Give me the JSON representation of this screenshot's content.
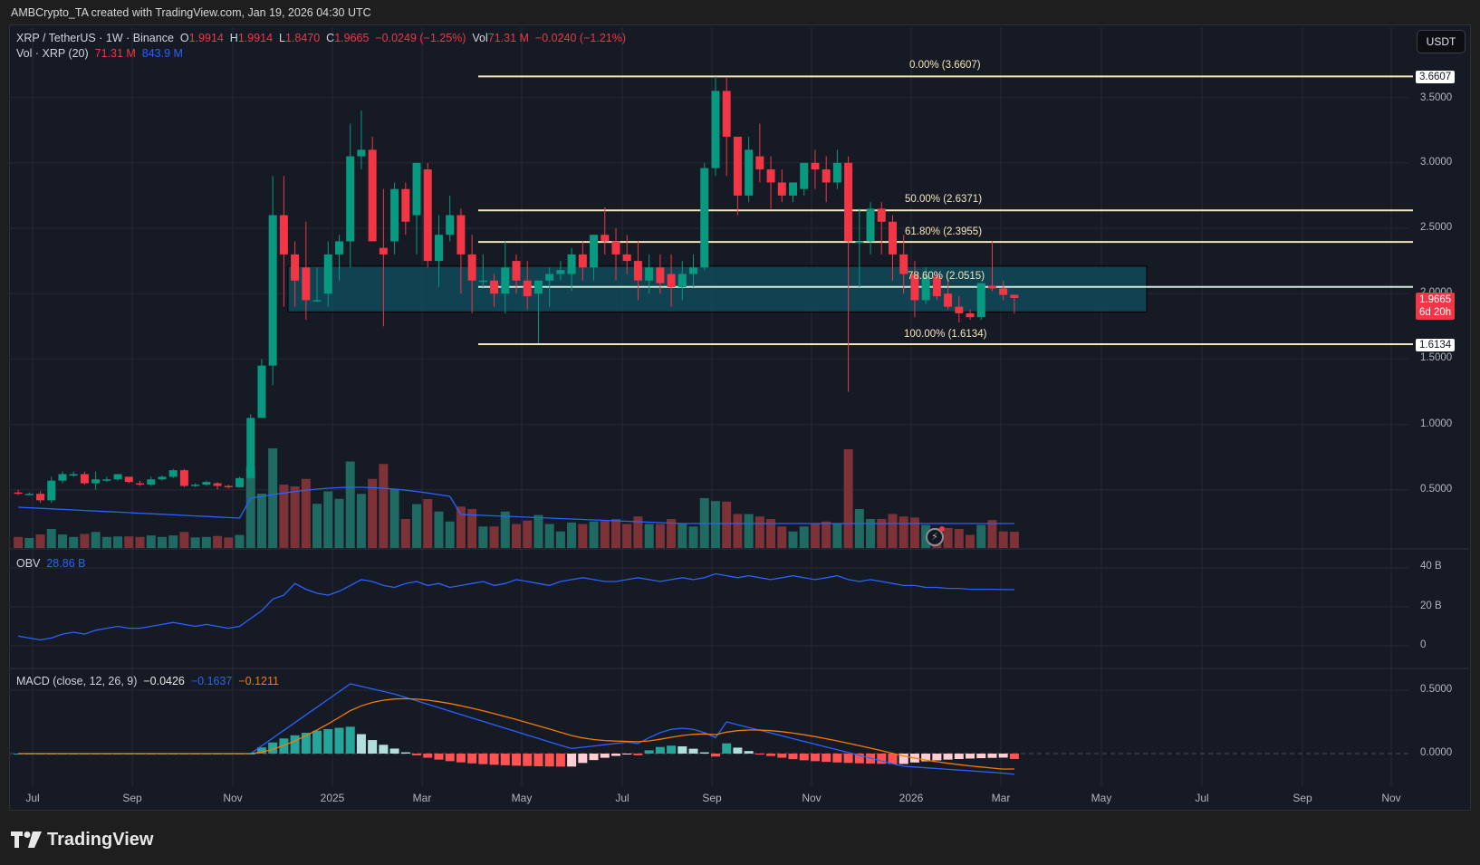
{
  "header": {
    "caption": "AMBCrypto_TA created with TradingView.com, Jan 19, 2026 04:30 UTC"
  },
  "symbol_legend": {
    "symbol": "XRP / TetherUS · 1W · Binance",
    "open_label": "O",
    "open": "1.9914",
    "high_label": "H",
    "high": "1.9914",
    "low_label": "L",
    "low": "1.8470",
    "close_label": "C",
    "close": "1.9665",
    "change": "−0.0249 (−1.25%)",
    "vol_label": "Vol",
    "vol": "71.31 M",
    "vol_change": "−0.0240 (−1.21%)"
  },
  "volume_legend": {
    "label": "Vol · XRP (20)",
    "value": "71.31 M",
    "ma": "843.9 M"
  },
  "currency_button": "USDT",
  "price_axis": {
    "ticks": [
      "3.5000",
      "3.0000",
      "2.5000",
      "2.0000",
      "1.5000",
      "1.0000",
      "0.5000"
    ],
    "top_tag": "3.6607",
    "current_price": "1.9665",
    "countdown": "6d 20h",
    "bottom_tag": "1.6134"
  },
  "fib_levels": [
    {
      "label": "0.00% (3.6607)",
      "price": 3.6607
    },
    {
      "label": "50.00% (2.6371)",
      "price": 2.6371
    },
    {
      "label": "61.80% (2.3955)",
      "price": 2.3955
    },
    {
      "label": "78.60% (2.0515)",
      "price": 2.0515
    },
    {
      "label": "100.00% (1.6134)",
      "price": 1.6134
    }
  ],
  "obv": {
    "label": "OBV",
    "value": "28.86 B",
    "ticks": [
      "40 B",
      "20 B",
      "0"
    ]
  },
  "macd": {
    "label": "MACD (close, 12, 26, 9)",
    "histogram": "−0.0426",
    "macd": "−0.1637",
    "signal": "−0.1211",
    "ticks": [
      "0.5000",
      "0.0000"
    ]
  },
  "x_axis": {
    "labels": [
      "Jul",
      "Sep",
      "Nov",
      "2025",
      "Mar",
      "May",
      "Jul",
      "Sep",
      "Nov",
      "2026",
      "Mar",
      "May",
      "Jul",
      "Sep",
      "Nov"
    ]
  },
  "brand": "TradingView",
  "colors": {
    "up": "#089981",
    "down": "#f23645",
    "fib_line": "#f5e6b8",
    "zone": "#0f4a5a",
    "obv_line": "#2962ff",
    "macd_line": "#2962ff",
    "signal_line": "#f57c00"
  },
  "chart_data": {
    "type": "candlestick",
    "title": "XRP / TetherUS · 1W · Binance",
    "xlabel": "",
    "ylabel": "USDT",
    "ylim": [
      0.0,
      3.8
    ],
    "x_ticks": [
      "Jul",
      "Sep",
      "Nov",
      "2025",
      "Mar",
      "May",
      "Jul",
      "Sep",
      "Nov",
      "2026",
      "Mar",
      "May",
      "Jul",
      "Sep",
      "Nov"
    ],
    "candles": [
      {
        "o": 0.48,
        "h": 0.5,
        "l": 0.46,
        "c": 0.47
      },
      {
        "o": 0.47,
        "h": 0.48,
        "l": 0.46,
        "c": 0.47
      },
      {
        "o": 0.47,
        "h": 0.49,
        "l": 0.4,
        "c": 0.42
      },
      {
        "o": 0.42,
        "h": 0.6,
        "l": 0.4,
        "c": 0.57
      },
      {
        "o": 0.57,
        "h": 0.64,
        "l": 0.55,
        "c": 0.62
      },
      {
        "o": 0.62,
        "h": 0.64,
        "l": 0.6,
        "c": 0.62
      },
      {
        "o": 0.62,
        "h": 0.64,
        "l": 0.54,
        "c": 0.55
      },
      {
        "o": 0.55,
        "h": 0.64,
        "l": 0.5,
        "c": 0.58
      },
      {
        "o": 0.57,
        "h": 0.6,
        "l": 0.56,
        "c": 0.58
      },
      {
        "o": 0.58,
        "h": 0.62,
        "l": 0.57,
        "c": 0.62
      },
      {
        "o": 0.6,
        "h": 0.6,
        "l": 0.55,
        "c": 0.56
      },
      {
        "o": 0.55,
        "h": 0.57,
        "l": 0.53,
        "c": 0.54
      },
      {
        "o": 0.54,
        "h": 0.6,
        "l": 0.53,
        "c": 0.58
      },
      {
        "o": 0.58,
        "h": 0.61,
        "l": 0.57,
        "c": 0.6
      },
      {
        "o": 0.6,
        "h": 0.66,
        "l": 0.59,
        "c": 0.65
      },
      {
        "o": 0.65,
        "h": 0.66,
        "l": 0.52,
        "c": 0.53
      },
      {
        "o": 0.54,
        "h": 0.55,
        "l": 0.52,
        "c": 0.54
      },
      {
        "o": 0.54,
        "h": 0.57,
        "l": 0.53,
        "c": 0.56
      },
      {
        "o": 0.55,
        "h": 0.56,
        "l": 0.5,
        "c": 0.53
      },
      {
        "o": 0.53,
        "h": 0.54,
        "l": 0.51,
        "c": 0.52
      },
      {
        "o": 0.52,
        "h": 0.6,
        "l": 0.52,
        "c": 0.59
      },
      {
        "o": 0.59,
        "h": 1.08,
        "l": 0.58,
        "c": 1.05
      },
      {
        "o": 1.05,
        "h": 1.5,
        "l": 1.05,
        "c": 1.45
      },
      {
        "o": 1.45,
        "h": 2.9,
        "l": 1.3,
        "c": 2.6
      },
      {
        "o": 2.6,
        "h": 2.9,
        "l": 1.9,
        "c": 2.3
      },
      {
        "o": 2.3,
        "h": 2.4,
        "l": 1.9,
        "c": 2.1
      },
      {
        "o": 2.2,
        "h": 2.55,
        "l": 1.8,
        "c": 1.95
      },
      {
        "o": 1.95,
        "h": 2.2,
        "l": 1.95,
        "c": 1.95
      },
      {
        "o": 2.0,
        "h": 2.4,
        "l": 1.9,
        "c": 2.3
      },
      {
        "o": 2.3,
        "h": 2.45,
        "l": 2.1,
        "c": 2.4
      },
      {
        "o": 2.4,
        "h": 3.3,
        "l": 2.2,
        "c": 3.05
      },
      {
        "o": 3.05,
        "h": 3.4,
        "l": 2.95,
        "c": 3.1
      },
      {
        "o": 3.1,
        "h": 3.2,
        "l": 2.45,
        "c": 2.4
      },
      {
        "o": 2.35,
        "h": 2.8,
        "l": 1.75,
        "c": 2.3
      },
      {
        "o": 2.4,
        "h": 2.85,
        "l": 2.3,
        "c": 2.8
      },
      {
        "o": 2.8,
        "h": 2.85,
        "l": 2.45,
        "c": 2.55
      },
      {
        "o": 2.6,
        "h": 3.0,
        "l": 2.3,
        "c": 3.0
      },
      {
        "o": 2.95,
        "h": 3.0,
        "l": 2.2,
        "c": 2.25
      },
      {
        "o": 2.25,
        "h": 2.6,
        "l": 2.05,
        "c": 2.45
      },
      {
        "o": 2.45,
        "h": 2.75,
        "l": 2.4,
        "c": 2.6
      },
      {
        "o": 2.6,
        "h": 2.65,
        "l": 2.0,
        "c": 2.3
      },
      {
        "o": 2.3,
        "h": 2.45,
        "l": 1.85,
        "c": 2.1
      },
      {
        "o": 2.1,
        "h": 2.3,
        "l": 2.05,
        "c": 2.1
      },
      {
        "o": 2.1,
        "h": 2.15,
        "l": 1.9,
        "c": 2.0
      },
      {
        "o": 2.0,
        "h": 2.4,
        "l": 1.85,
        "c": 2.2
      },
      {
        "o": 2.25,
        "h": 2.3,
        "l": 2.0,
        "c": 2.1
      },
      {
        "o": 2.1,
        "h": 2.25,
        "l": 1.88,
        "c": 1.98
      },
      {
        "o": 2.0,
        "h": 2.1,
        "l": 1.62,
        "c": 2.1
      },
      {
        "o": 2.1,
        "h": 2.2,
        "l": 1.9,
        "c": 2.15
      },
      {
        "o": 2.15,
        "h": 2.25,
        "l": 2.1,
        "c": 2.18
      },
      {
        "o": 2.15,
        "h": 2.35,
        "l": 2.02,
        "c": 2.3
      },
      {
        "o": 2.3,
        "h": 2.4,
        "l": 2.1,
        "c": 2.2
      },
      {
        "o": 2.2,
        "h": 2.45,
        "l": 2.1,
        "c": 2.45
      },
      {
        "o": 2.45,
        "h": 2.66,
        "l": 2.3,
        "c": 2.4
      },
      {
        "o": 2.4,
        "h": 2.5,
        "l": 2.1,
        "c": 2.3
      },
      {
        "o": 2.3,
        "h": 2.45,
        "l": 2.15,
        "c": 2.25
      },
      {
        "o": 2.25,
        "h": 2.4,
        "l": 1.95,
        "c": 2.1
      },
      {
        "o": 2.1,
        "h": 2.3,
        "l": 2.0,
        "c": 2.2
      },
      {
        "o": 2.2,
        "h": 2.3,
        "l": 2.0,
        "c": 2.08
      },
      {
        "o": 2.15,
        "h": 2.3,
        "l": 1.9,
        "c": 2.05
      },
      {
        "o": 2.05,
        "h": 2.25,
        "l": 1.95,
        "c": 2.15
      },
      {
        "o": 2.15,
        "h": 2.3,
        "l": 2.05,
        "c": 2.2
      },
      {
        "o": 2.2,
        "h": 3.0,
        "l": 2.18,
        "c": 2.96
      },
      {
        "o": 2.96,
        "h": 3.66,
        "l": 2.9,
        "c": 3.55
      },
      {
        "o": 3.55,
        "h": 3.65,
        "l": 2.9,
        "c": 3.2
      },
      {
        "o": 3.2,
        "h": 3.1,
        "l": 2.6,
        "c": 2.75
      },
      {
        "o": 2.75,
        "h": 3.2,
        "l": 2.7,
        "c": 3.1
      },
      {
        "o": 3.05,
        "h": 3.3,
        "l": 2.85,
        "c": 2.95
      },
      {
        "o": 2.95,
        "h": 3.05,
        "l": 2.65,
        "c": 2.85
      },
      {
        "o": 2.85,
        "h": 2.95,
        "l": 2.7,
        "c": 2.75
      },
      {
        "o": 2.75,
        "h": 2.85,
        "l": 2.7,
        "c": 2.85
      },
      {
        "o": 2.8,
        "h": 3.0,
        "l": 2.75,
        "c": 3.0
      },
      {
        "o": 3.0,
        "h": 3.1,
        "l": 2.8,
        "c": 2.95
      },
      {
        "o": 2.95,
        "h": 3.05,
        "l": 2.7,
        "c": 2.85
      },
      {
        "o": 2.85,
        "h": 3.1,
        "l": 2.8,
        "c": 3.0
      },
      {
        "o": 3.0,
        "h": 3.05,
        "l": 1.25,
        "c": 2.4
      },
      {
        "o": 2.4,
        "h": 2.65,
        "l": 2.05,
        "c": 2.4
      },
      {
        "o": 2.4,
        "h": 2.7,
        "l": 2.3,
        "c": 2.65
      },
      {
        "o": 2.65,
        "h": 2.7,
        "l": 2.3,
        "c": 2.55
      },
      {
        "o": 2.55,
        "h": 2.6,
        "l": 2.1,
        "c": 2.3
      },
      {
        "o": 2.3,
        "h": 2.45,
        "l": 2.0,
        "c": 2.15
      },
      {
        "o": 2.15,
        "h": 2.25,
        "l": 1.82,
        "c": 1.95
      },
      {
        "o": 1.95,
        "h": 2.2,
        "l": 1.92,
        "c": 2.13
      },
      {
        "o": 2.13,
        "h": 2.17,
        "l": 1.95,
        "c": 1.98
      },
      {
        "o": 2.0,
        "h": 2.1,
        "l": 1.88,
        "c": 1.9
      },
      {
        "o": 1.9,
        "h": 1.98,
        "l": 1.78,
        "c": 1.85
      },
      {
        "o": 1.85,
        "h": 1.88,
        "l": 1.8,
        "c": 1.82
      },
      {
        "o": 1.82,
        "h": 2.08,
        "l": 1.8,
        "c": 2.08
      },
      {
        "o": 2.06,
        "h": 2.4,
        "l": 2.02,
        "c": 2.04
      },
      {
        "o": 2.04,
        "h": 2.1,
        "l": 1.95,
        "c": 1.99
      },
      {
        "o": 1.9914,
        "h": 1.9914,
        "l": 1.847,
        "c": 1.9665
      }
    ],
    "overlays": {
      "fibonacci": [
        {
          "level": "0.00%",
          "price": 3.6607
        },
        {
          "level": "50.00%",
          "price": 2.6371
        },
        {
          "level": "61.80%",
          "price": 2.3955
        },
        {
          "level": "78.60%",
          "price": 2.0515
        },
        {
          "level": "100.00%",
          "price": 1.6134
        }
      ],
      "demand_zone": {
        "top": 2.21,
        "bottom": 1.86
      }
    },
    "indicators": {
      "volume": {
        "last": "71.31 M",
        "ma20": "843.9 M"
      },
      "obv": {
        "last": "28.86 B",
        "ylim": [
          0,
          45
        ]
      },
      "macd": {
        "params": [
          12,
          26,
          9
        ],
        "histogram": -0.0426,
        "macd": -0.1637,
        "signal": -0.1211
      }
    }
  }
}
